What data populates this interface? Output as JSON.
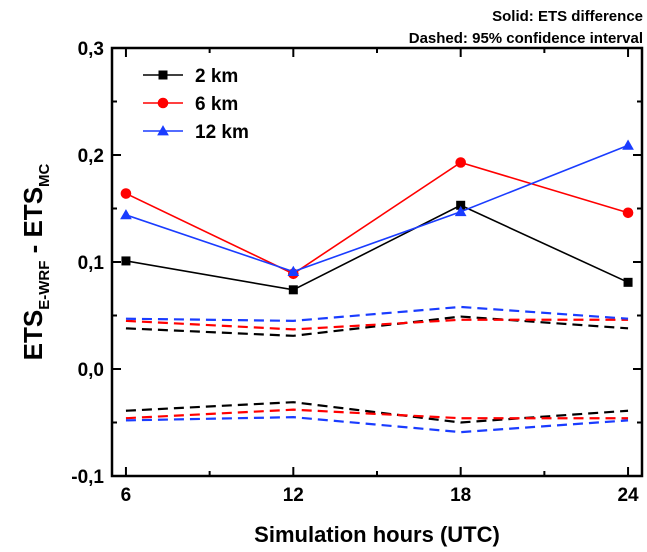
{
  "annotations": {
    "line1": "Solid: ETS difference",
    "line2": "Dashed: 95% confidence interval"
  },
  "chart_data": {
    "type": "line",
    "xlabel": "Simulation hours (UTC)",
    "ylabel": {
      "main1": "ETS",
      "sub1": "E-WRF",
      "mid": " - ETS",
      "sub2": "MC"
    },
    "x": [
      6,
      12,
      18,
      24
    ],
    "xlim": [
      5.5,
      24.5
    ],
    "ylim": [
      -0.1,
      0.3
    ],
    "x_ticks": [
      6,
      12,
      18,
      24
    ],
    "x_tick_labels": [
      "6",
      "12",
      "18",
      "24"
    ],
    "y_ticks": [
      -0.1,
      0.0,
      0.1,
      0.2,
      0.3
    ],
    "y_tick_labels": [
      "-0,1",
      "0,0",
      "0,1",
      "0,2",
      "0,3"
    ],
    "grid": false,
    "legend_position": "top-left",
    "series": [
      {
        "name": "2 km",
        "color": "#000000",
        "marker": "square",
        "values": [
          0.101,
          0.074,
          0.153,
          0.081
        ]
      },
      {
        "name": "6 km",
        "color": "#ff0000",
        "marker": "circle",
        "values": [
          0.164,
          0.089,
          0.193,
          0.146
        ]
      },
      {
        "name": "12 km",
        "color": "#1a3cff",
        "marker": "triangle",
        "values": [
          0.144,
          0.091,
          0.147,
          0.209
        ]
      }
    ],
    "confidence_interval": [
      {
        "color": "#000000",
        "upper": [
          0.038,
          0.031,
          0.049,
          0.038
        ],
        "lower": [
          -0.039,
          -0.031,
          -0.05,
          -0.039
        ]
      },
      {
        "color": "#ff0000",
        "upper": [
          0.045,
          0.037,
          0.046,
          0.046
        ],
        "lower": [
          -0.046,
          -0.038,
          -0.046,
          -0.046
        ]
      },
      {
        "color": "#1a3cff",
        "upper": [
          0.047,
          0.045,
          0.058,
          0.047
        ],
        "lower": [
          -0.048,
          -0.045,
          -0.059,
          -0.048
        ]
      }
    ]
  }
}
